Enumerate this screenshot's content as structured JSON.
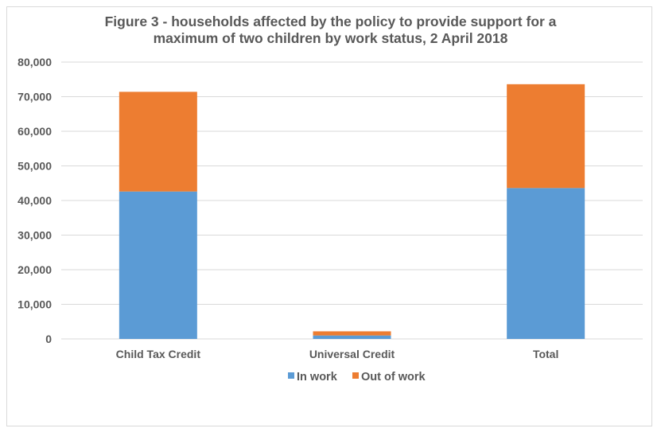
{
  "chart_data": {
    "type": "bar",
    "stacked": true,
    "title_lines": [
      "Figure 3 - households affected by the policy to provide support for a",
      "maximum of two children by work status, 2 April 2018"
    ],
    "categories": [
      "Child Tax Credit",
      "Universal Credit",
      "Total"
    ],
    "series": [
      {
        "name": "In work",
        "values": [
          42600,
          1000,
          43600
        ],
        "color": "#5b9bd5"
      },
      {
        "name": "Out of work",
        "values": [
          28800,
          1200,
          30000
        ],
        "color": "#ed7d31"
      }
    ],
    "ylim": [
      0,
      80000
    ],
    "yticks": [
      0,
      10000,
      20000,
      30000,
      40000,
      50000,
      60000,
      70000,
      80000
    ],
    "ytick_labels": [
      "0",
      "10,000",
      "20,000",
      "30,000",
      "40,000",
      "50,000",
      "60,000",
      "70,000",
      "80,000"
    ],
    "grid": true,
    "gridline_color": "#d9d9d9",
    "legend_position": "bottom",
    "text_color": "#595959"
  }
}
